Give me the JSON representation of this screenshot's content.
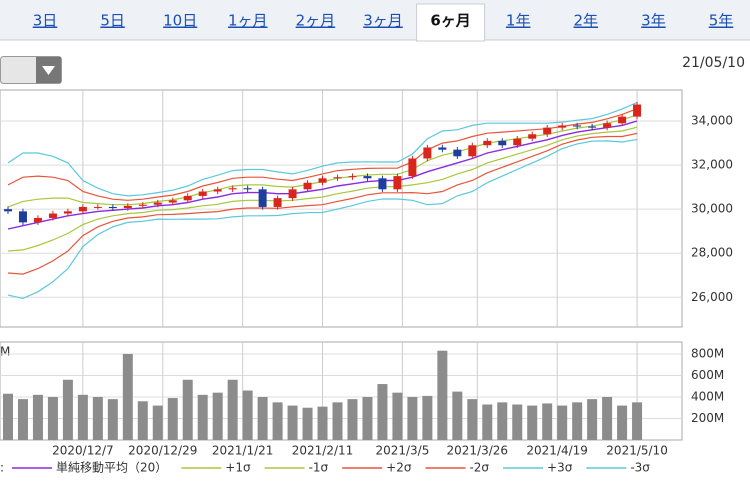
{
  "tabs": [
    "3日",
    "5日",
    "10日",
    "1ヶ月",
    "2ヶ月",
    "3ヶ月",
    "6ヶ月",
    "1年",
    "2年",
    "3年",
    "5年"
  ],
  "active_tab": 6,
  "date": "21/05/10",
  "chart_data": {
    "type": "candlestick",
    "x": [
      0,
      3,
      6,
      9,
      12,
      15,
      18,
      21,
      24,
      27,
      30,
      33,
      36,
      39,
      42,
      45,
      48,
      51,
      54,
      57,
      60,
      63,
      66,
      69,
      72,
      75,
      78,
      81,
      84,
      87,
      90,
      93,
      96,
      99,
      102,
      105,
      108,
      111,
      114,
      117,
      120,
      123,
      126
    ],
    "xlim": [
      -1.6,
      135
    ],
    "xticks": [
      {
        "value": 15,
        "label": "2020/12/7"
      },
      {
        "value": 31,
        "label": "2020/12/29"
      },
      {
        "value": 47,
        "label": "2021/1/21"
      },
      {
        "value": 63,
        "label": "2021/2/11"
      },
      {
        "value": 79,
        "label": "2021/3/5"
      },
      {
        "value": 94,
        "label": "2021/3/26"
      },
      {
        "value": 110,
        "label": "2021/4/19"
      },
      {
        "value": 126,
        "label": "2021/5/10"
      }
    ],
    "open": [
      30000,
      29900,
      29400,
      29600,
      29800,
      29900,
      30100,
      30100,
      30050,
      30150,
      30200,
      30300,
      30400,
      30600,
      30800,
      30900,
      30950,
      30900,
      30100,
      30500,
      30900,
      31200,
      31400,
      31450,
      31500,
      31400,
      30900,
      31500,
      32300,
      32800,
      32700,
      32400,
      32900,
      33100,
      32900,
      33200,
      33400,
      33700,
      33800,
      33750,
      33700,
      33900,
      34200
    ],
    "high": [
      30120,
      30020,
      29720,
      29920,
      30020,
      30220,
      30220,
      30220,
      30270,
      30320,
      30420,
      30520,
      30720,
      30920,
      31020,
      31070,
      31070,
      31020,
      30620,
      31020,
      31320,
      31520,
      31570,
      31620,
      31620,
      31520,
      31620,
      32420,
      32920,
      32920,
      32820,
      33020,
      33220,
      33220,
      33320,
      33520,
      33820,
      33920,
      33920,
      33870,
      34020,
      34320,
      34870
    ],
    "low": [
      29780,
      29280,
      29280,
      29480,
      29680,
      29780,
      29980,
      29930,
      29930,
      30030,
      30080,
      30180,
      30280,
      30480,
      30680,
      30780,
      30780,
      29980,
      29980,
      30380,
      30780,
      31080,
      31280,
      31330,
      31280,
      30780,
      30780,
      31380,
      32180,
      32580,
      32280,
      32280,
      32780,
      32780,
      32780,
      33080,
      33280,
      33580,
      33630,
      33580,
      33580,
      33780,
      34080
    ],
    "close": [
      29900,
      29400,
      29600,
      29800,
      29900,
      30100,
      30100,
      30050,
      30150,
      30200,
      30300,
      30400,
      30600,
      30800,
      30900,
      30950,
      30900,
      30100,
      30500,
      30900,
      31200,
      31400,
      31450,
      31500,
      31400,
      30900,
      31500,
      32300,
      32800,
      32700,
      32400,
      32900,
      33100,
      32900,
      33200,
      33400,
      33700,
      33800,
      33750,
      33700,
      33900,
      34200,
      34750
    ],
    "up_color": "#d9261c",
    "down_color": "#1f3d9e",
    "ma": {
      "name": "単純移動平均（20）",
      "color": "#8a2be2",
      "values": [
        29100,
        29250,
        29400,
        29550,
        29700,
        29800,
        29900,
        29950,
        30000,
        30050,
        30150,
        30200,
        30300,
        30450,
        30550,
        30700,
        30750,
        30750,
        30700,
        30700,
        30800,
        30900,
        31050,
        31150,
        31250,
        31300,
        31300,
        31450,
        31700,
        31900,
        32100,
        32300,
        32550,
        32700,
        32850,
        33000,
        33150,
        33350,
        33500,
        33600,
        33700,
        33800,
        34000
      ]
    },
    "sigma": [
      1000,
      1100,
      1050,
      950,
      800,
      500,
      350,
      250,
      200,
      200,
      200,
      220,
      250,
      300,
      330,
      350,
      350,
      350,
      330,
      300,
      320,
      350,
      350,
      330,
      300,
      280,
      280,
      350,
      500,
      550,
      500,
      500,
      450,
      400,
      350,
      300,
      250,
      200,
      180,
      170,
      200,
      250,
      280
    ],
    "bands": [
      {
        "name": "+1σ",
        "color": "#a8c83c",
        "k": 1
      },
      {
        "name": "-1σ",
        "color": "#a8c83c",
        "k": -1
      },
      {
        "name": "+2σ",
        "color": "#e8553a",
        "k": 2
      },
      {
        "name": "-2σ",
        "color": "#e8553a",
        "k": -2
      },
      {
        "name": "+3σ",
        "color": "#5bc8dc",
        "k": 3
      },
      {
        "name": "-3σ",
        "color": "#5bc8dc",
        "k": -3
      }
    ],
    "ylim": [
      24650,
      35409
    ],
    "yticks": [
      {
        "value": 26000,
        "label": "26,000"
      },
      {
        "value": 28000,
        "label": "28,000"
      },
      {
        "value": 30000,
        "label": "30,000"
      },
      {
        "value": 32000,
        "label": "32,000"
      },
      {
        "value": 34000,
        "label": "34,000"
      }
    ],
    "grid": true,
    "legend_prefix": ":",
    "volume": {
      "label": "M",
      "color": "#8c8c8c",
      "values": [
        430,
        380,
        420,
        400,
        560,
        420,
        400,
        380,
        800,
        360,
        320,
        390,
        560,
        420,
        440,
        560,
        460,
        400,
        350,
        320,
        300,
        310,
        350,
        380,
        400,
        520,
        440,
        400,
        410,
        830,
        450,
        380,
        330,
        350,
        330,
        320,
        340,
        320,
        350,
        380,
        400,
        320,
        350
      ],
      "ylim": [
        0,
        911
      ],
      "yticks": [
        {
          "value": 200,
          "label": "200M"
        },
        {
          "value": 400,
          "label": "400M"
        },
        {
          "value": 600,
          "label": "600M"
        },
        {
          "value": 800,
          "label": "800M"
        }
      ]
    }
  }
}
